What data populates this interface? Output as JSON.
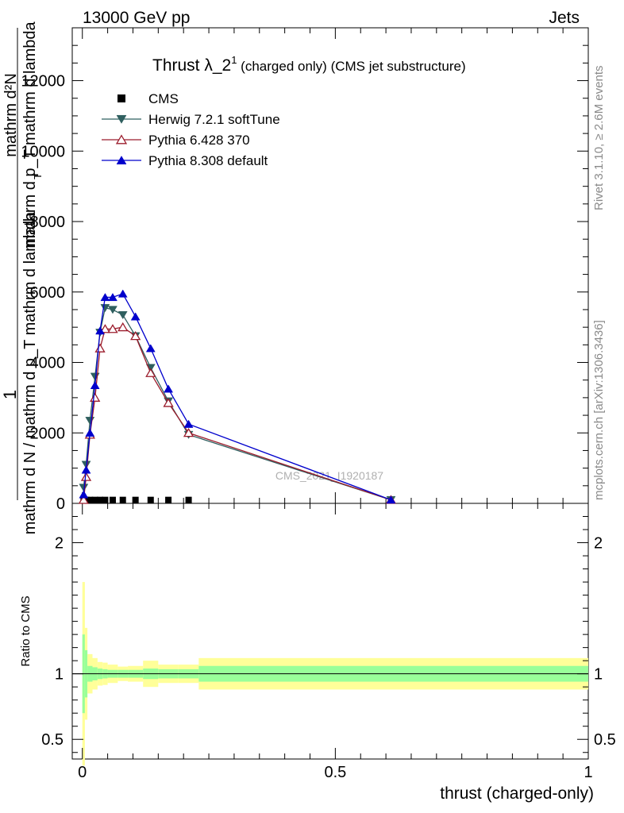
{
  "header": {
    "left": "13000 GeV pp",
    "right": "Jets"
  },
  "side_labels": {
    "rivet": "Rivet 3.1.10, ≥ 2.6M events",
    "mcplots": "mcplots.cern.ch [arXiv:1306.3436]"
  },
  "watermark": "CMS_2021_I1920187",
  "chart_data": {
    "type": "line",
    "title_main": "Thrust λ_2",
    "title_sup": "1",
    "title_sub": " (charged only) (CMS jet substructure)",
    "xlabel": "thrust (charged-only)",
    "ylabel_top": "1",
    "ylabel_fraction_num_lines": [
      "mathrm d²N",
      "mathrm d p_T mathrm d lambda"
    ],
    "ylabel_fraction_den": "mathrm d N / mathrm d p_T mathrm d lambda",
    "ylabel_T_sub": "T",
    "ratio_ylabel": "Ratio to CMS",
    "xlim": [
      -0.02,
      1.0
    ],
    "ylim": [
      0,
      13500
    ],
    "ratio_ylim": [
      0.35,
      2.3
    ],
    "x_ticks": [
      0,
      0.5,
      1
    ],
    "x_tick_labels": [
      "0",
      "0.5",
      "1"
    ],
    "y_ticks": [
      0,
      2000,
      4000,
      6000,
      8000,
      10000,
      12000
    ],
    "y_tick_labels": [
      "0",
      "2000",
      "4000",
      "6000",
      "8000",
      "10000",
      "12000"
    ],
    "ratio_ticks": [
      0.5,
      1,
      2
    ],
    "ratio_tick_labels": [
      "0.5",
      "1",
      "2"
    ],
    "legend_position": "top-left",
    "series": [
      {
        "name": "CMS",
        "marker": "square",
        "color": "#000000",
        "x": [
          0.0025,
          0.0075,
          0.015,
          0.025,
          0.035,
          0.045,
          0.06,
          0.08,
          0.105,
          0.135,
          0.17,
          0.21
        ],
        "y": [
          30,
          30,
          30,
          30,
          30,
          30,
          30,
          30,
          30,
          30,
          30,
          30
        ]
      },
      {
        "name": "Herwig 7.2.1 softTune",
        "marker": "triangle-down",
        "color": "#2f5f5f",
        "x": [
          0.0025,
          0.0075,
          0.015,
          0.025,
          0.035,
          0.045,
          0.06,
          0.08,
          0.105,
          0.135,
          0.17,
          0.21,
          0.61
        ],
        "y": [
          450,
          1100,
          2350,
          3600,
          4850,
          5550,
          5500,
          5350,
          4750,
          3850,
          2900,
          1950,
          100
        ]
      },
      {
        "name": "Pythia 6.428 370",
        "marker": "triangle-up-open",
        "color": "#9b1c2c",
        "x": [
          0.0025,
          0.0075,
          0.015,
          0.025,
          0.035,
          0.045,
          0.06,
          0.08,
          0.105,
          0.135,
          0.17,
          0.21,
          0.61
        ],
        "y": [
          100,
          750,
          1950,
          3000,
          4400,
          4950,
          4950,
          5000,
          4750,
          3700,
          2850,
          2000,
          100
        ]
      },
      {
        "name": "Pythia 8.308 default",
        "marker": "triangle-up",
        "color": "#0000cc",
        "x": [
          0.0025,
          0.0075,
          0.015,
          0.025,
          0.035,
          0.045,
          0.06,
          0.08,
          0.105,
          0.135,
          0.17,
          0.21,
          0.61
        ],
        "y": [
          250,
          950,
          2000,
          3350,
          4900,
          5850,
          5850,
          5950,
          5300,
          4400,
          3250,
          2250,
          100
        ]
      }
    ],
    "ratio_bands": {
      "edges": [
        0.0,
        0.005,
        0.01,
        0.02,
        0.03,
        0.04,
        0.05,
        0.07,
        0.09,
        0.12,
        0.15,
        0.19,
        0.23,
        1.0
      ],
      "inner_half": [
        0.3,
        0.18,
        0.06,
        0.05,
        0.04,
        0.035,
        0.03,
        0.03,
        0.03,
        0.04,
        0.035,
        0.035,
        0.06
      ],
      "outer_half": [
        0.7,
        0.35,
        0.15,
        0.12,
        0.09,
        0.085,
        0.07,
        0.055,
        0.06,
        0.1,
        0.07,
        0.07,
        0.12
      ],
      "inner_color": "#99ff99",
      "outer_color": "#ffff99"
    }
  }
}
